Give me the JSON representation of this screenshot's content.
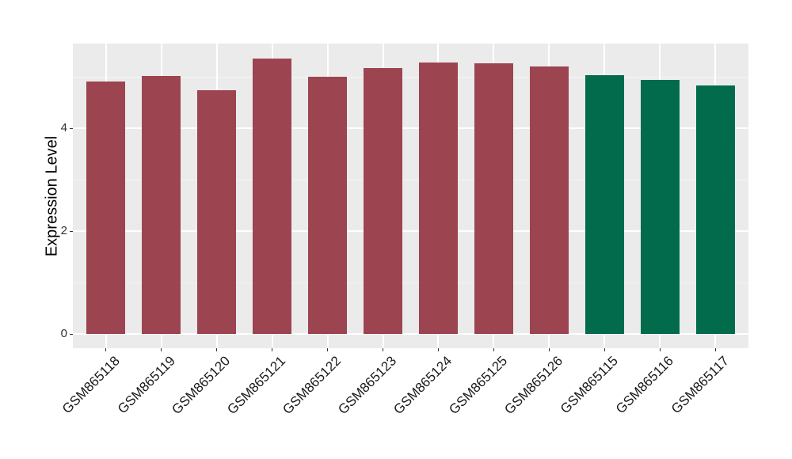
{
  "chart_data": {
    "type": "bar",
    "title": "",
    "xlabel": "",
    "ylabel": "Expression Level",
    "categories": [
      "GSM865118",
      "GSM865119",
      "GSM865120",
      "GSM865121",
      "GSM865122",
      "GSM865123",
      "GSM865124",
      "GSM865125",
      "GSM865126",
      "GSM865115",
      "GSM865116",
      "GSM865117"
    ],
    "values": [
      4.91,
      5.02,
      4.75,
      5.36,
      5.0,
      5.18,
      5.28,
      5.27,
      5.2,
      5.03,
      4.94,
      4.84
    ],
    "bar_colors": [
      "#9C4450",
      "#9C4450",
      "#9C4450",
      "#9C4450",
      "#9C4450",
      "#9C4450",
      "#9C4450",
      "#9C4450",
      "#9C4450",
      "#026B4B",
      "#026B4B",
      "#026B4B"
    ],
    "group_colors": {
      "maroon_group": "#9C4450",
      "green_group": "#026B4B"
    },
    "ylim": [
      -0.27,
      5.65
    ],
    "yticks": [
      0,
      2,
      4
    ],
    "yticks_minor": [
      1,
      3,
      5
    ],
    "ytick_labels": [
      "0",
      "2",
      "4"
    ],
    "bar_width_fraction": 0.7,
    "grid": true,
    "legend_position": "none",
    "panel_background": "#EBEBEB",
    "figure_background": "#FFFFFF",
    "grid_major_color": "#FFFFFF",
    "grid_minor_color": "#F5F5F5",
    "tick_mark_color": "#333333",
    "axis_text_color": "#303030",
    "axis_title_color": "#000000"
  }
}
